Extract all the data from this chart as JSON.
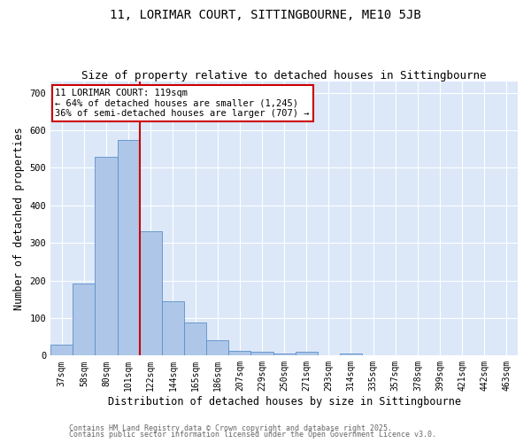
{
  "title": "11, LORIMAR COURT, SITTINGBOURNE, ME10 5JB",
  "subtitle": "Size of property relative to detached houses in Sittingbourne",
  "xlabel": "Distribution of detached houses by size in Sittingbourne",
  "ylabel": "Number of detached properties",
  "categories": [
    "37sqm",
    "58sqm",
    "80sqm",
    "101sqm",
    "122sqm",
    "144sqm",
    "165sqm",
    "186sqm",
    "207sqm",
    "229sqm",
    "250sqm",
    "271sqm",
    "293sqm",
    "314sqm",
    "335sqm",
    "357sqm",
    "378sqm",
    "399sqm",
    "421sqm",
    "442sqm",
    "463sqm"
  ],
  "values": [
    30,
    193,
    530,
    575,
    330,
    145,
    88,
    40,
    12,
    10,
    5,
    10,
    0,
    5,
    0,
    0,
    0,
    0,
    0,
    0,
    0
  ],
  "bar_color": "#aec6e8",
  "bar_edge_color": "#5b8fc9",
  "background_color": "#dce8f8",
  "vline_x_index": 4,
  "vline_color": "#cc0000",
  "annotation_text": "11 LORIMAR COURT: 119sqm\n← 64% of detached houses are smaller (1,245)\n36% of semi-detached houses are larger (707) →",
  "annotation_box_color": "white",
  "annotation_box_edge": "#cc0000",
  "ylim": [
    0,
    730
  ],
  "yticks": [
    0,
    100,
    200,
    300,
    400,
    500,
    600,
    700
  ],
  "footer_line1": "Contains HM Land Registry data © Crown copyright and database right 2025.",
  "footer_line2": "Contains public sector information licensed under the Open Government Licence v3.0.",
  "title_fontsize": 10,
  "subtitle_fontsize": 9,
  "tick_fontsize": 7,
  "label_fontsize": 8.5,
  "footer_fontsize": 6,
  "annotation_fontsize": 7.5
}
